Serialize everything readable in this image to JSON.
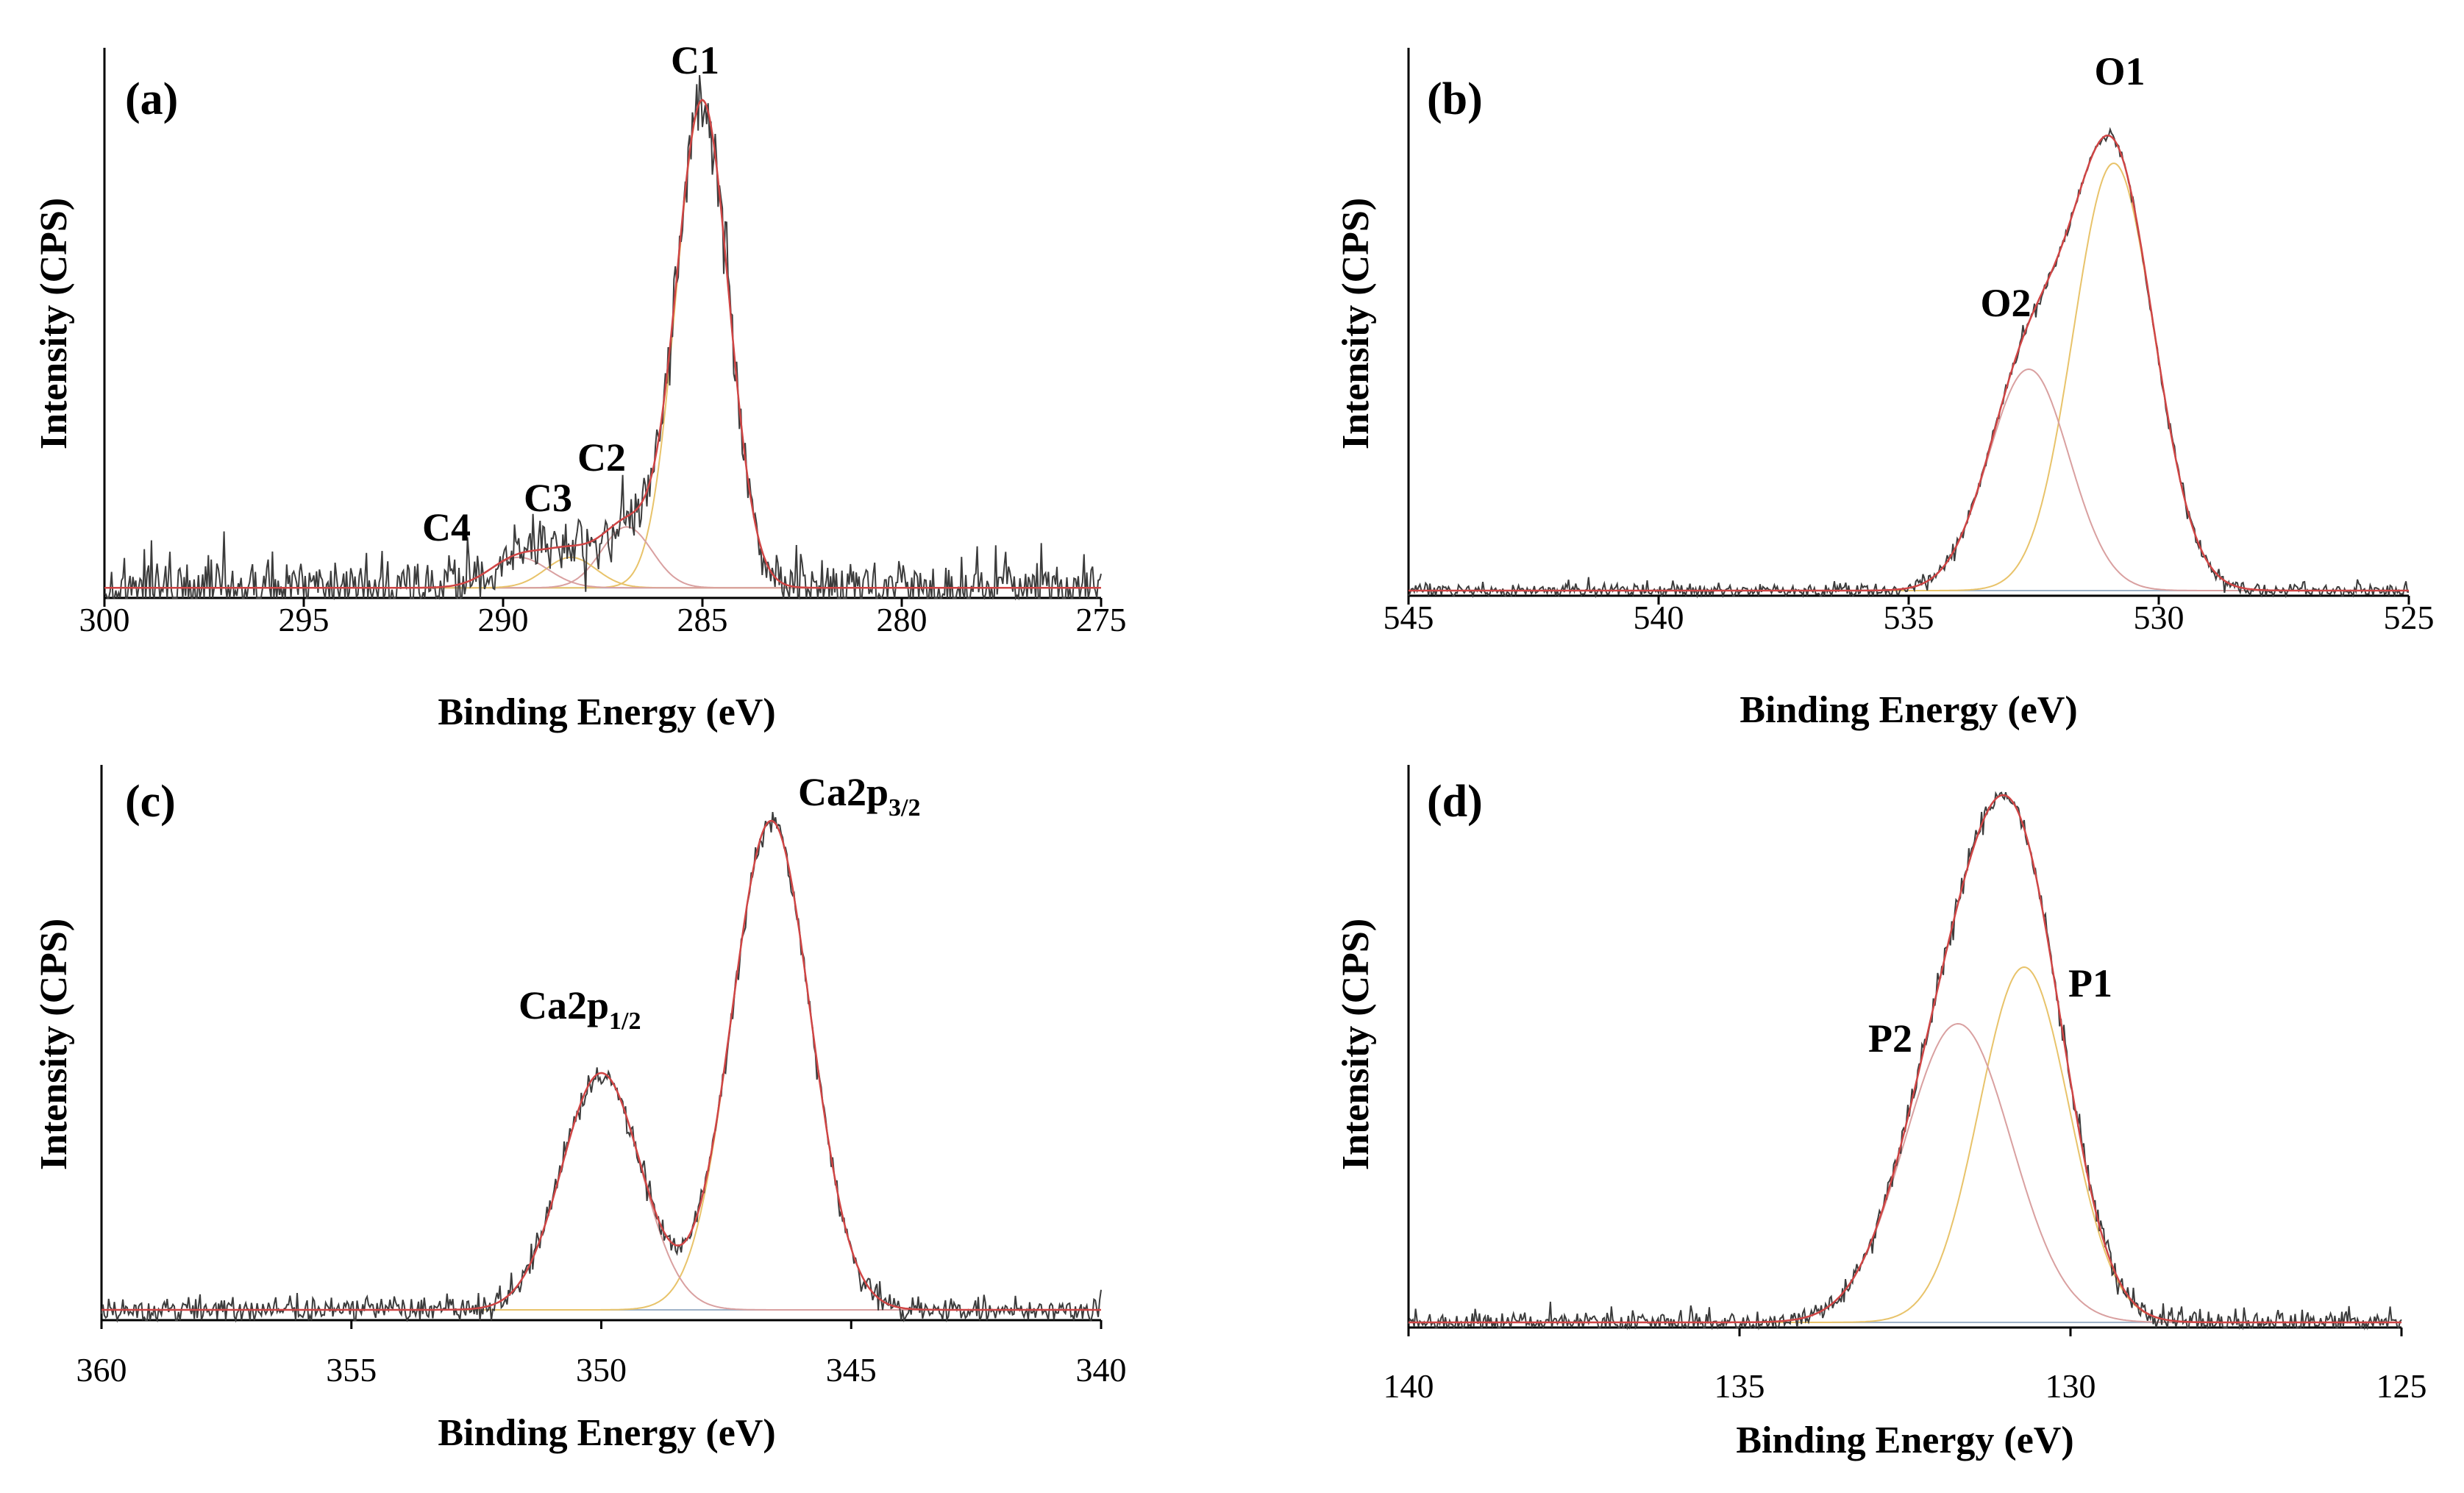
{
  "colors": {
    "raw": "#3c3c3c",
    "envelope": "#d04545",
    "component": "#e8c36a",
    "component_alt": "#d9a0a0",
    "background": "#9fb3c8"
  },
  "chart_data": [
    {
      "type": "line",
      "panel_label": "(a)",
      "xlabel": "Binding Energy (eV)",
      "ylabel": "Intensity (CPS)",
      "xlim": [
        300,
        275
      ],
      "xticks": [
        300,
        295,
        290,
        285,
        280,
        275
      ],
      "tick_labels": [
        "300",
        "295",
        "290",
        "285",
        "280",
        "275"
      ],
      "ylim": [
        0,
        1.0
      ],
      "noise": 0.025,
      "baseline": 0.02,
      "components": [
        {
          "name": "C1",
          "label": "C1",
          "center": 285.0,
          "height": 0.96,
          "fwhm": 1.55
        },
        {
          "name": "C2",
          "label": "C2",
          "center": 286.9,
          "height": 0.12,
          "fwhm": 1.5
        },
        {
          "name": "C3",
          "label": "C3",
          "center": 288.3,
          "height": 0.06,
          "fwhm": 1.5
        },
        {
          "name": "C4",
          "label": "C4",
          "center": 289.6,
          "height": 0.06,
          "fwhm": 1.7
        }
      ]
    },
    {
      "type": "line",
      "panel_label": "(b)",
      "xlabel": "Binding Energy (eV)",
      "ylabel": "Intensity (CPS)",
      "xlim": [
        545,
        525
      ],
      "xticks": [
        545,
        540,
        535,
        530,
        525
      ],
      "tick_labels": [
        "545",
        "540",
        "535",
        "530",
        "525"
      ],
      "ylim": [
        0,
        1.0
      ],
      "noise": 0.006,
      "baseline": 0.01,
      "components": [
        {
          "name": "O1",
          "label": "O1",
          "center": 530.9,
          "height": 0.83,
          "fwhm": 1.9
        },
        {
          "name": "O2",
          "label": "O2",
          "center": 532.6,
          "height": 0.43,
          "fwhm": 1.9
        }
      ]
    },
    {
      "type": "line",
      "panel_label": "(c)",
      "xlabel": "Binding Energy (eV)",
      "ylabel": "Intensity (CPS)",
      "xlim": [
        360,
        340
      ],
      "xticks": [
        360,
        355,
        350,
        345,
        340
      ],
      "tick_labels": [
        "360",
        "355",
        "350",
        "345",
        "340"
      ],
      "ylim": [
        0,
        1.0
      ],
      "noise": 0.01,
      "baseline": 0.02,
      "components": [
        {
          "name": "Ca2p3/2",
          "label": "Ca2p",
          "sub": "3/2",
          "center": 346.6,
          "height": 0.95,
          "fwhm": 1.85
        },
        {
          "name": "Ca2p1/2",
          "label": "Ca2p",
          "sub": "1/2",
          "center": 350.0,
          "height": 0.46,
          "fwhm": 1.85
        }
      ]
    },
    {
      "type": "line",
      "panel_label": "(d)",
      "xlabel": "Binding Energy (eV)",
      "ylabel": "Intensity (CPS)",
      "xlim": [
        140,
        125
      ],
      "xticks": [
        140,
        135,
        130,
        125
      ],
      "tick_labels": [
        "140",
        "135",
        "130",
        "125"
      ],
      "ylim": [
        0,
        1.0
      ],
      "noise": 0.01,
      "baseline": 0.01,
      "components": [
        {
          "name": "P1",
          "label": "P1",
          "center": 130.7,
          "height": 0.69,
          "fwhm": 1.6
        },
        {
          "name": "P2",
          "label": "P2",
          "center": 131.7,
          "height": 0.58,
          "fwhm": 1.9
        }
      ]
    }
  ]
}
